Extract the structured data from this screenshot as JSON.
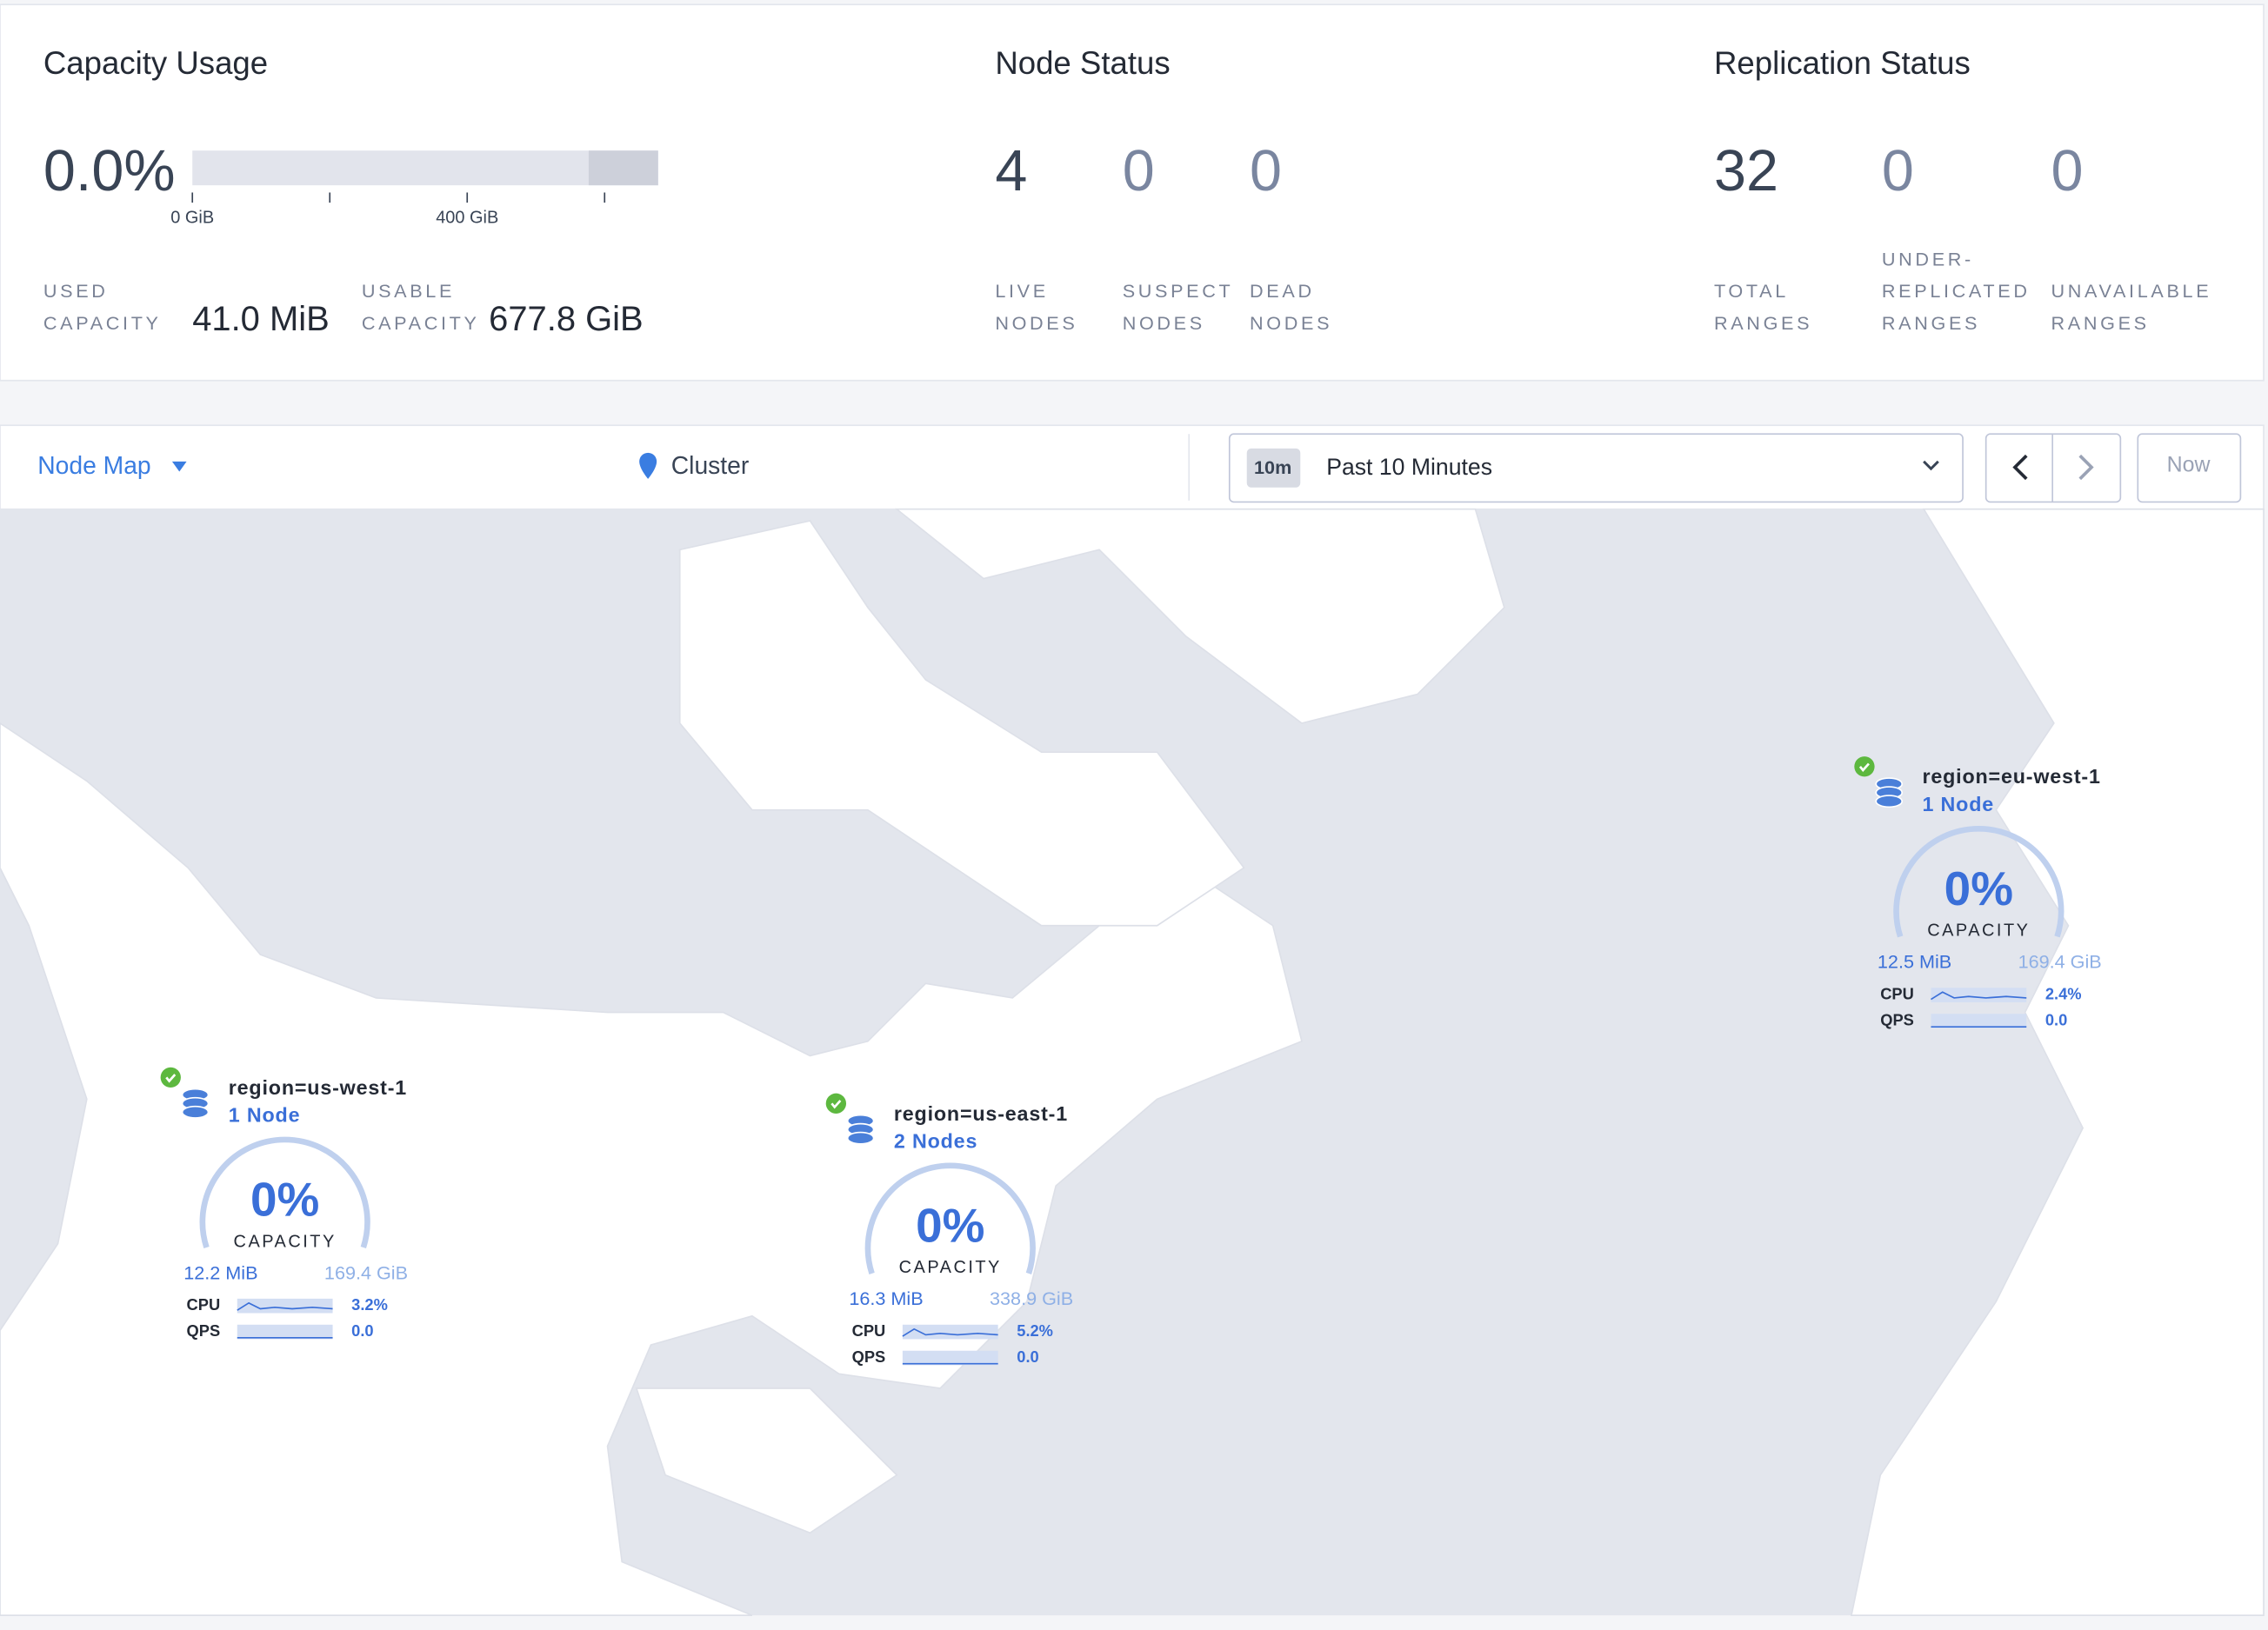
{
  "capacity_usage": {
    "title": "Capacity Usage",
    "percent": "0.0%",
    "scale_ticks": [
      "0 GiB",
      "400 GiB"
    ],
    "stats": [
      {
        "label": [
          "USED",
          "CAPACITY"
        ],
        "value": "41.0 MiB"
      },
      {
        "label": [
          "USABLE",
          "CAPACITY"
        ],
        "value": "677.8 GiB"
      }
    ]
  },
  "node_status": {
    "title": "Node Status",
    "stats": [
      {
        "value": 4,
        "label": [
          "LIVE",
          "NODES"
        ]
      },
      {
        "value": 0,
        "label": [
          "SUSPECT",
          "NODES"
        ]
      },
      {
        "value": 0,
        "label": [
          "DEAD",
          "NODES"
        ]
      }
    ]
  },
  "replication_status": {
    "title": "Replication Status",
    "stats": [
      {
        "value": 32,
        "label": [
          "TOTAL",
          "RANGES"
        ]
      },
      {
        "value": 0,
        "label": [
          "UNDER-",
          "REPLICATED",
          "RANGES"
        ]
      },
      {
        "value": 0,
        "label": [
          "UNAVAILABLE",
          "RANGES"
        ]
      }
    ]
  },
  "toolbar": {
    "view": "Node Map",
    "location": "Cluster",
    "range_badge": "10m",
    "range": "Past 10 Minutes",
    "now": "Now"
  },
  "regions": [
    {
      "name": "region=us-west-1",
      "nodes": "1 Node",
      "capacity": "0%",
      "capacity_label": "CAPACITY",
      "used": "12.2 MiB",
      "total": "169.4 GiB",
      "cpu_label": "CPU",
      "cpu": "3.2%",
      "qps_label": "QPS",
      "qps": "0.0"
    },
    {
      "name": "region=us-east-1",
      "nodes": "2 Nodes",
      "capacity": "0%",
      "capacity_label": "CAPACITY",
      "used": "16.3 MiB",
      "total": "338.9 GiB",
      "cpu_label": "CPU",
      "cpu": "5.2%",
      "qps_label": "QPS",
      "qps": "0.0"
    },
    {
      "name": "region=eu-west-1",
      "nodes": "1 Node",
      "capacity": "0%",
      "capacity_label": "CAPACITY",
      "used": "12.5 MiB",
      "total": "169.4 GiB",
      "cpu_label": "CPU",
      "cpu": "2.4%",
      "qps_label": "QPS",
      "qps": "0.0"
    }
  ]
}
